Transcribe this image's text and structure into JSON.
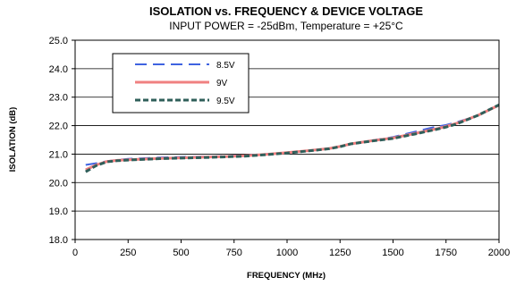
{
  "chart_data": {
    "type": "line",
    "title": "ISOLATION  vs.  FREQUENCY  &  DEVICE VOLTAGE",
    "subtitle": "INPUT POWER = -25dBm, Temperature = +25°C",
    "xlabel": "FREQUENCY (MHz)",
    "ylabel": "ISOLATION (dB)",
    "xlim": [
      0,
      2000
    ],
    "ylim": [
      18.0,
      25.0
    ],
    "xticks": [
      0,
      250,
      500,
      750,
      1000,
      1250,
      1500,
      1750,
      2000
    ],
    "yticks": [
      "18.0",
      "19.0",
      "20.0",
      "21.0",
      "22.0",
      "23.0",
      "24.0",
      "25.0"
    ],
    "grid": true,
    "legend_position": "top-left",
    "x": [
      50,
      100,
      150,
      200,
      250,
      300,
      400,
      500,
      600,
      700,
      800,
      900,
      1000,
      1100,
      1200,
      1250,
      1300,
      1400,
      1500,
      1600,
      1700,
      1750,
      1800,
      1900,
      2000
    ],
    "series": [
      {
        "name": "8.5V",
        "color": "#3f63e0",
        "dash": "long-dash",
        "values": [
          20.62,
          20.68,
          20.75,
          20.8,
          20.83,
          20.85,
          20.88,
          20.9,
          20.91,
          20.93,
          20.96,
          21.0,
          21.05,
          21.12,
          21.2,
          21.27,
          21.35,
          21.48,
          21.6,
          21.78,
          21.96,
          22.02,
          22.12,
          22.35,
          22.72
        ]
      },
      {
        "name": "9V",
        "color": "#f08080",
        "dash": "solid",
        "values": [
          20.45,
          20.62,
          20.74,
          20.78,
          20.8,
          20.82,
          20.85,
          20.87,
          20.89,
          20.91,
          20.94,
          20.99,
          21.05,
          21.12,
          21.2,
          21.27,
          21.36,
          21.47,
          21.57,
          21.72,
          21.88,
          21.97,
          22.08,
          22.36,
          22.72
        ]
      },
      {
        "name": "9.5V",
        "color": "#2f5f5a",
        "dash": "short-dash",
        "values": [
          20.38,
          20.6,
          20.73,
          20.77,
          20.79,
          20.81,
          20.84,
          20.86,
          20.88,
          20.9,
          20.93,
          20.98,
          21.04,
          21.11,
          21.19,
          21.26,
          21.36,
          21.46,
          21.55,
          21.7,
          21.86,
          21.95,
          22.06,
          22.36,
          22.73
        ]
      }
    ],
    "colors": {
      "plot_background": "#ffffff",
      "gridline": "#000000",
      "frame": "#000000"
    }
  }
}
